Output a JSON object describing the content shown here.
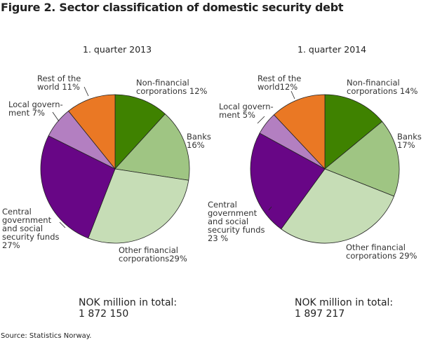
{
  "title": "Figure 2. Sector classification of domestic security debt",
  "source": "Source: Statistics Norway.",
  "colors": {
    "Non-financial corporations": "#3f8200",
    "Banks": "#9fc583",
    "Other financial corporations": "#c6ddb6",
    "Central government and social security funds": "#680686",
    "Local government": "#b37fc1",
    "Rest of the world": "#ea7824"
  },
  "chart_data": [
    {
      "type": "pie",
      "title": "1. quarter 2013",
      "total_label": "NOK million in total:",
      "total_value": "1 872 150",
      "categories": [
        "Non-financial corporations",
        "Banks",
        "Other financial corporations",
        "Central government and social security funds",
        "Local government",
        "Rest of the world"
      ],
      "values": [
        12,
        16,
        29,
        27,
        7,
        11
      ],
      "labels": [
        "Non-financial\ncorporations 12%",
        "Banks\n16%",
        "Other financial\ncorporations29%",
        "Central\ngovernment\nand social\nsecurity funds\n27%",
        "Local govern-\nment 7%",
        "Rest of the\nworld 11%"
      ]
    },
    {
      "type": "pie",
      "title": "1. quarter 2014",
      "total_label": "NOK million in total:",
      "total_value": "1 897 217",
      "categories": [
        "Non-financial corporations",
        "Banks",
        "Other financial corporations",
        "Central government and social security funds",
        "Local government",
        "Rest of the world"
      ],
      "values": [
        14,
        17,
        29,
        23,
        5,
        12
      ],
      "labels": [
        "Non-financial\ncorporations 14%",
        "Banks\n17%",
        "Other financial\ncorporations 29%",
        "Central\ngovernment\nand social\nsecurity funds\n23 %",
        "Local govern-\nment 5%",
        "Rest of the\nworld12%"
      ]
    }
  ]
}
